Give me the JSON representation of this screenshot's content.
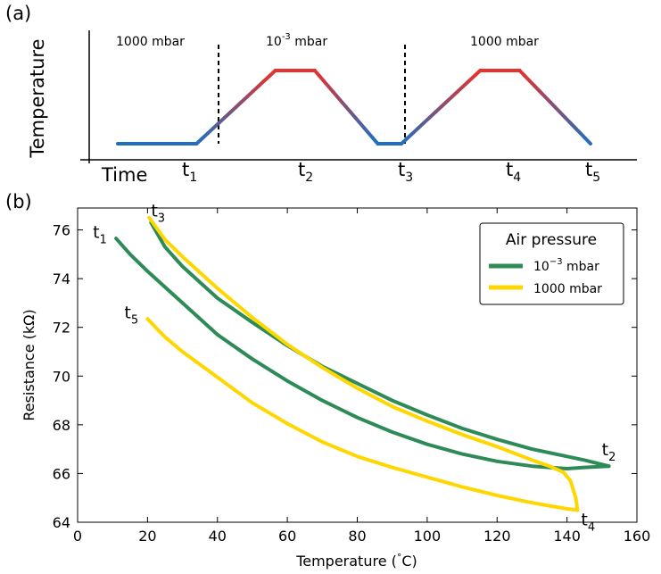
{
  "chart_data": [
    {
      "type": "line",
      "panel_label": "(a)",
      "ylabel": "Temperature",
      "xlabel": "Time",
      "time_labels": [
        {
          "main": "t",
          "sub": "1"
        },
        {
          "main": "t",
          "sub": "2"
        },
        {
          "main": "t",
          "sub": "3"
        },
        {
          "main": "t",
          "sub": "4"
        },
        {
          "main": "t",
          "sub": "5"
        }
      ],
      "pressure_labels": [
        {
          "base": "1000 mbar",
          "sup": "",
          "unit": ""
        },
        {
          "base": "10",
          "sup": "-3",
          "unit": " mbar"
        },
        {
          "base": "1000 mbar",
          "sup": "",
          "unit": ""
        }
      ],
      "profile": [
        [
          0.0,
          0.0
        ],
        [
          1.0,
          0.0
        ],
        [
          2.0,
          1.0
        ],
        [
          2.5,
          1.0
        ],
        [
          3.3,
          0.0
        ],
        [
          3.6,
          0.0
        ],
        [
          4.6,
          1.0
        ],
        [
          5.1,
          1.0
        ],
        [
          6.0,
          0.0
        ]
      ],
      "line_colors": {
        "cold": "#1f6fc0",
        "hot": "#e8322c"
      }
    },
    {
      "type": "line",
      "panel_label": "(b)",
      "xlabel": "Temperature (°C)",
      "xlabel_parts": {
        "before": "Temperature (",
        "deg": "°",
        "after": "C)"
      },
      "ylabel": "Resistance (kΩ)",
      "xlim": [
        0,
        160
      ],
      "ylim": [
        64,
        76.9
      ],
      "xticks": [
        "0",
        "20",
        "40",
        "60",
        "80",
        "100",
        "120",
        "140",
        "160"
      ],
      "yticks": [
        "64",
        "66",
        "68",
        "70",
        "72",
        "74",
        "76"
      ],
      "legend": {
        "title": "Air pressure",
        "position": "top-right",
        "entries": [
          {
            "base": "10",
            "sup": "−3",
            "unit": " mbar",
            "color": "#2e8b57"
          },
          {
            "base": "1000 mbar",
            "sup": "",
            "unit": "",
            "color": "#ffd700"
          }
        ]
      },
      "point_labels": [
        {
          "main": "t",
          "sub": "1",
          "x": 11,
          "y": 75.6
        },
        {
          "main": "t",
          "sub": "3",
          "x": 20.5,
          "y": 76.4
        },
        {
          "main": "t",
          "sub": "5",
          "x": 20,
          "y": 72.3
        },
        {
          "main": "t",
          "sub": "2",
          "x": 152,
          "y": 66.3
        },
        {
          "main": "t",
          "sub": "4",
          "x": 143,
          "y": 64.6
        }
      ],
      "series": [
        {
          "name": "10^-3 mbar",
          "color": "#2e8b57",
          "segments": [
            [
              [
                11,
                75.65
              ],
              [
                15,
                75.0
              ],
              [
                20,
                74.3
              ],
              [
                30,
                73.0
              ],
              [
                40,
                71.7
              ],
              [
                50,
                70.7
              ],
              [
                60,
                69.8
              ],
              [
                70,
                69.0
              ],
              [
                80,
                68.3
              ],
              [
                90,
                67.7
              ],
              [
                100,
                67.2
              ],
              [
                110,
                66.8
              ],
              [
                120,
                66.5
              ],
              [
                130,
                66.3
              ],
              [
                140,
                66.2
              ],
              [
                145,
                66.25
              ],
              [
                152,
                66.3
              ]
            ],
            [
              [
                152,
                66.3
              ],
              [
                145,
                66.55
              ],
              [
                140,
                66.7
              ],
              [
                130,
                67.0
              ],
              [
                120,
                67.4
              ],
              [
                110,
                67.85
              ],
              [
                100,
                68.4
              ],
              [
                90,
                69.0
              ],
              [
                80,
                69.7
              ],
              [
                70,
                70.4
              ],
              [
                60,
                71.25
              ],
              [
                50,
                72.2
              ],
              [
                40,
                73.2
              ],
              [
                30,
                74.5
              ],
              [
                25,
                75.3
              ],
              [
                21,
                76.3
              ]
            ]
          ]
        },
        {
          "name": "1000 mbar",
          "color": "#ffd700",
          "segments": [
            [
              [
                20.5,
                76.5
              ],
              [
                25,
                75.6
              ],
              [
                30,
                74.9
              ],
              [
                40,
                73.6
              ],
              [
                50,
                72.4
              ],
              [
                60,
                71.3
              ],
              [
                70,
                70.35
              ],
              [
                80,
                69.5
              ],
              [
                90,
                68.75
              ],
              [
                100,
                68.15
              ],
              [
                110,
                67.6
              ],
              [
                120,
                67.1
              ],
              [
                130,
                66.55
              ],
              [
                135,
                66.3
              ],
              [
                139,
                66.05
              ],
              [
                141,
                65.7
              ],
              [
                142.5,
                65.0
              ],
              [
                143,
                64.5
              ]
            ],
            [
              [
                143,
                64.5
              ],
              [
                140,
                64.55
              ],
              [
                130,
                64.8
              ],
              [
                120,
                65.1
              ],
              [
                110,
                65.45
              ],
              [
                100,
                65.85
              ],
              [
                90,
                66.25
              ],
              [
                80,
                66.7
              ],
              [
                70,
                67.3
              ],
              [
                60,
                68.05
              ],
              [
                50,
                68.9
              ],
              [
                40,
                69.95
              ],
              [
                30,
                71.0
              ],
              [
                25,
                71.6
              ],
              [
                20,
                72.35
              ]
            ]
          ]
        }
      ]
    }
  ]
}
